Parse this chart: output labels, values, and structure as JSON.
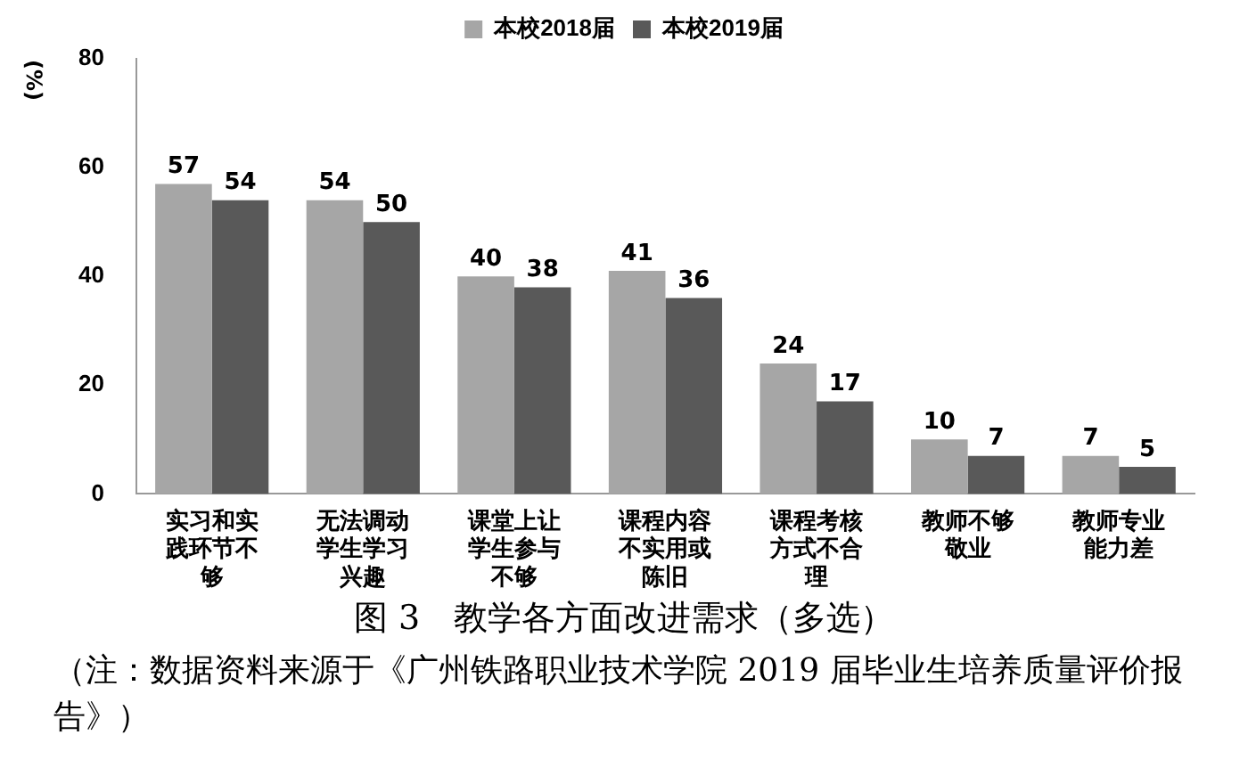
{
  "chart_data": {
    "type": "bar",
    "title": "图 3　教学各方面改进需求（多选）",
    "ylabel": "(%)",
    "annotations": [
      "（注：数据资料来源于《广州铁路职业技术学院 2019 届毕业生培养质量评价报告》）"
    ],
    "categories": [
      "实习和实践环节不够",
      "无法调动学生学习兴趣",
      "课堂上让学生参与不够",
      "课程内容不实用或陈旧",
      "课程考核方式不合理",
      "教师不够敬业",
      "教师专业能力差"
    ],
    "series": [
      {
        "name": "本校2018届",
        "color": "#a6a6a6",
        "values": [
          57,
          54,
          40,
          41,
          24,
          10,
          7
        ]
      },
      {
        "name": "本校2019届",
        "color": "#595959",
        "values": [
          54,
          50,
          38,
          36,
          17,
          7,
          5
        ]
      }
    ],
    "ylim": [
      0,
      80
    ],
    "yticks": [
      0,
      20,
      40,
      60,
      80
    ],
    "grid": false,
    "legend": "top",
    "data_labels": true
  }
}
